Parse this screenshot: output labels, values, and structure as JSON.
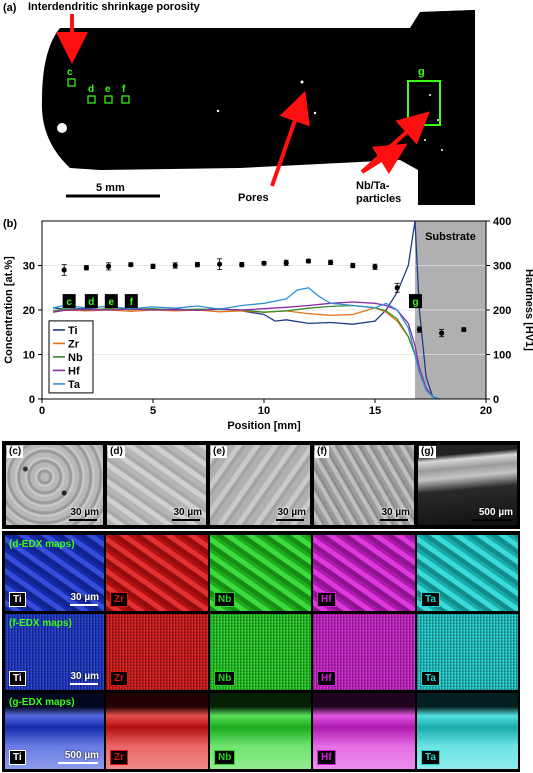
{
  "panel_a": {
    "label": "(a)",
    "annotations": {
      "porosity": "Interdendritic shrinkage porosity",
      "pores": "Pores",
      "particles_line1": "Nb/Ta-",
      "particles_line2": "particles",
      "scale": "5 mm"
    },
    "region_tags": [
      "c",
      "d",
      "e",
      "f",
      "g"
    ]
  },
  "panel_b": {
    "label": "(b)",
    "substrate_label": "Substrate",
    "legend": [
      "Ti",
      "Zr",
      "Nb",
      "Hf",
      "Ta"
    ],
    "markers": [
      "c",
      "d",
      "e",
      "f",
      "g"
    ]
  },
  "chart_data": {
    "type": "line",
    "xlabel": "Position [mm]",
    "ylabel": "Concentration [at.%]",
    "y2label": "Hardness [HV1]",
    "xlim": [
      0,
      20
    ],
    "ylim": [
      0,
      40
    ],
    "y2lim": [
      0,
      400
    ],
    "xticks": [
      0,
      5,
      10,
      15,
      20
    ],
    "yticks": [
      0,
      10,
      20,
      30
    ],
    "y2ticks": [
      0,
      100,
      200,
      300,
      400
    ],
    "substrate_range": [
      16.8,
      20
    ],
    "colors": {
      "Ti": "#1f3c88",
      "Zr": "#e8741c",
      "Nb": "#3a8a2a",
      "Hf": "#8a2aa8",
      "Ta": "#2f8fd8",
      "hardness": "#000000"
    },
    "series": [
      {
        "name": "Ti",
        "x": [
          0.5,
          1,
          2,
          3,
          4,
          5,
          6,
          7,
          8,
          9,
          10,
          10.5,
          11,
          12,
          13,
          14,
          15,
          15.5,
          16,
          16.5,
          16.8,
          17.0,
          17.3,
          17.6,
          17.9
        ],
        "y": [
          20.5,
          20.2,
          20.3,
          20.1,
          20.4,
          20.0,
          20.2,
          20.0,
          20.3,
          19.8,
          19.0,
          17.5,
          17.8,
          17.0,
          17.2,
          16.8,
          17.5,
          20.0,
          24.0,
          30.0,
          40.0,
          20.0,
          5.0,
          0.5,
          0.0
        ]
      },
      {
        "name": "Zr",
        "x": [
          0.5,
          1,
          2,
          3,
          4,
          5,
          6,
          7,
          8,
          9,
          10,
          11,
          12,
          13,
          14,
          15,
          15.5,
          16,
          16.5,
          16.8,
          17.0,
          17.3,
          17.6,
          17.9
        ],
        "y": [
          19.5,
          20.0,
          19.8,
          20.0,
          19.7,
          20.0,
          19.8,
          20.0,
          19.6,
          19.8,
          19.5,
          19.8,
          19.2,
          18.8,
          19.0,
          20.5,
          19.5,
          17.5,
          14.0,
          10.0,
          6.0,
          2.0,
          0.5,
          0.0
        ]
      },
      {
        "name": "Nb",
        "x": [
          0.5,
          1,
          2,
          3,
          4,
          5,
          6,
          7,
          8,
          9,
          10,
          11,
          12,
          13,
          14,
          15,
          15.5,
          16,
          16.5,
          16.8,
          17.0,
          17.3,
          17.6,
          17.9
        ],
        "y": [
          19.8,
          20.2,
          20.0,
          20.3,
          20.1,
          20.3,
          20.0,
          20.2,
          20.1,
          20.0,
          19.5,
          19.8,
          20.4,
          20.8,
          21.0,
          20.5,
          19.8,
          18.0,
          14.0,
          10.0,
          6.0,
          2.0,
          0.5,
          0.0
        ]
      },
      {
        "name": "Hf",
        "x": [
          0.5,
          1,
          2,
          3,
          4,
          5,
          6,
          7,
          8,
          9,
          10,
          11,
          12,
          13,
          14,
          15,
          15.5,
          16,
          16.5,
          16.8,
          17.0,
          17.3,
          17.6,
          17.9
        ],
        "y": [
          19.5,
          19.9,
          20.1,
          20.0,
          20.2,
          20.0,
          20.1,
          19.9,
          20.2,
          20.0,
          20.3,
          20.6,
          21.0,
          21.5,
          21.8,
          21.5,
          21.0,
          20.0,
          17.0,
          12.0,
          7.0,
          2.5,
          0.5,
          0.0
        ]
      },
      {
        "name": "Ta",
        "x": [
          0.5,
          1,
          2,
          3,
          4,
          5,
          6,
          7,
          8,
          9,
          10,
          11,
          11.5,
          12,
          12.5,
          13,
          14,
          15,
          15.5,
          16,
          16.5,
          16.8,
          17.0,
          17.3,
          17.6,
          17.9
        ],
        "y": [
          20.5,
          21.0,
          20.5,
          20.8,
          20.3,
          20.7,
          20.4,
          20.9,
          20.2,
          21.0,
          21.5,
          22.5,
          24.5,
          25.0,
          23.0,
          21.5,
          21.0,
          20.5,
          21.5,
          20.0,
          16.0,
          10.0,
          6.0,
          2.0,
          0.5,
          0.0
        ]
      },
      {
        "name": "Hardness",
        "axis": "y2",
        "x": [
          1,
          2,
          3,
          4,
          5,
          6,
          7,
          8,
          9,
          10,
          11,
          12,
          13,
          14,
          15,
          16,
          17,
          18,
          19
        ],
        "y": [
          290,
          295,
          298,
          302,
          298,
          300,
          302,
          303,
          302,
          305,
          306,
          310,
          307,
          300,
          297,
          250,
          156,
          148,
          156
        ],
        "err": [
          12,
          5,
          8,
          4,
          5,
          6,
          5,
          12,
          5,
          4,
          6,
          4,
          5,
          5,
          6,
          10,
          6,
          8,
          4
        ]
      }
    ]
  },
  "micro_panels": [
    {
      "label": "(c)",
      "scale": "30 µm"
    },
    {
      "label": "(d)",
      "scale": "30 µm"
    },
    {
      "label": "(e)",
      "scale": "30 µm"
    },
    {
      "label": "(f)",
      "scale": "30 µm"
    },
    {
      "label": "(g)",
      "scale": "500 µm"
    }
  ],
  "edx_rows": [
    {
      "title": "(d-EDX maps)",
      "scale": "30 µm"
    },
    {
      "title": "(f-EDX maps)",
      "scale": "30 µm"
    },
    {
      "title": "(g-EDX maps)",
      "scale": "500 µm"
    }
  ],
  "elements": [
    {
      "name": "Ti",
      "color": "#1a35d6"
    },
    {
      "name": "Zr",
      "color": "#e01414"
    },
    {
      "name": "Nb",
      "color": "#22d622"
    },
    {
      "name": "Hf",
      "color": "#d81ed8"
    },
    {
      "name": "Ta",
      "color": "#1ed6d6"
    }
  ]
}
